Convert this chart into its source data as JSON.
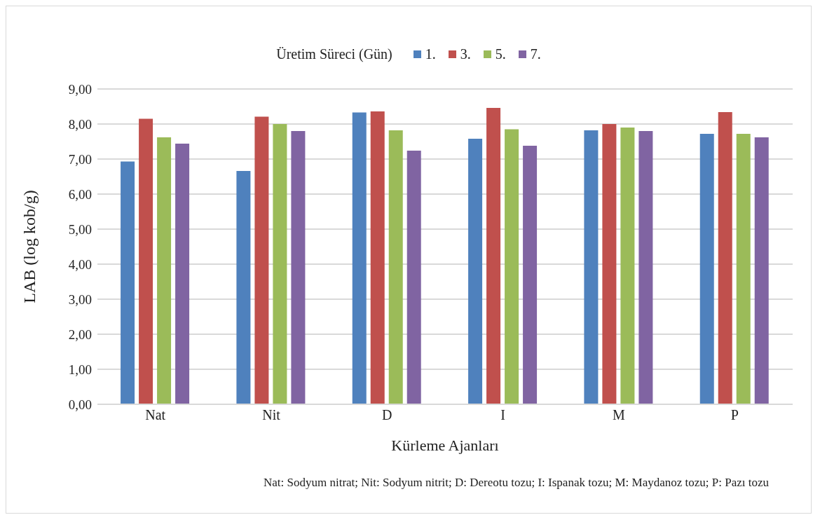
{
  "chart_data": {
    "type": "bar",
    "legend_title": "Üretim Süreci (Gün)",
    "xlabel": "Kürleme Ajanları",
    "ylabel": "LAB (log kob/g)",
    "categories": [
      "Nat",
      "Nit",
      "D",
      "I",
      "M",
      "P"
    ],
    "series": [
      {
        "name": "1.",
        "color": "#4f81bd",
        "values": [
          6.93,
          6.66,
          8.33,
          7.58,
          7.82,
          7.72
        ]
      },
      {
        "name": "3.",
        "color": "#c0504d",
        "values": [
          8.15,
          8.21,
          8.36,
          8.46,
          8.0,
          8.34
        ]
      },
      {
        "name": "5.",
        "color": "#9bbb59",
        "values": [
          7.62,
          8.0,
          7.82,
          7.85,
          7.9,
          7.72
        ]
      },
      {
        "name": "7.",
        "color": "#8064a2",
        "values": [
          7.44,
          7.8,
          7.24,
          7.38,
          7.8,
          7.62
        ]
      }
    ],
    "ylim": [
      0,
      9
    ],
    "yticks": [
      {
        "value": 0,
        "label": "0,00"
      },
      {
        "value": 1,
        "label": "1,00"
      },
      {
        "value": 2,
        "label": "2,00"
      },
      {
        "value": 3,
        "label": "3,00"
      },
      {
        "value": 4,
        "label": "4,00"
      },
      {
        "value": 5,
        "label": "5,00"
      },
      {
        "value": 6,
        "label": "6,00"
      },
      {
        "value": 7,
        "label": "7,00"
      },
      {
        "value": 8,
        "label": "8,00"
      },
      {
        "value": 9,
        "label": "9,00"
      }
    ],
    "grid": "y",
    "legend": "top",
    "annotations": [
      "Nat: Sodyum nitrat; Nit: Sodyum nitrit; D: Dereotu tozu; I: Ispanak tozu; M: Maydanoz tozu; P: Pazı tozu"
    ]
  }
}
